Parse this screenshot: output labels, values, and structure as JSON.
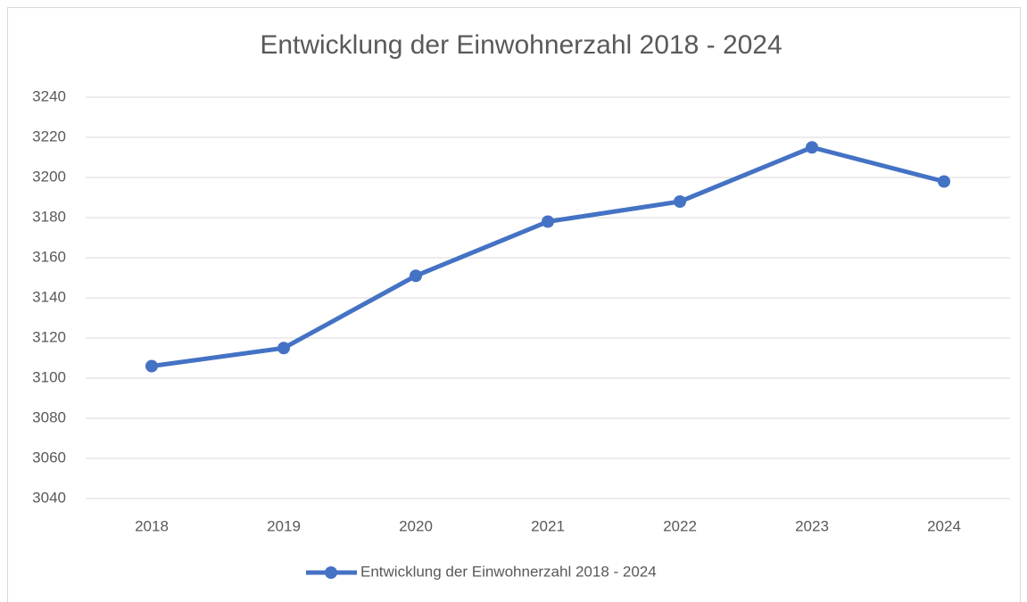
{
  "chart_data": {
    "type": "line",
    "title": "Entwicklung der Einwohnerzahl 2018 - 2024",
    "categories": [
      "2018",
      "2019",
      "2020",
      "2021",
      "2022",
      "2023",
      "2024"
    ],
    "series": [
      {
        "name": "Entwicklung der Einwohnerzahl 2018 - 2024",
        "color": "#4472c4",
        "values": [
          3106,
          3115,
          3151,
          3178,
          3188,
          3215,
          3198
        ]
      }
    ],
    "ylim": [
      3040,
      3240
    ],
    "yticks": [
      3040,
      3060,
      3080,
      3100,
      3120,
      3140,
      3160,
      3180,
      3200,
      3220,
      3240
    ],
    "grid": true,
    "legend": "bottom"
  }
}
